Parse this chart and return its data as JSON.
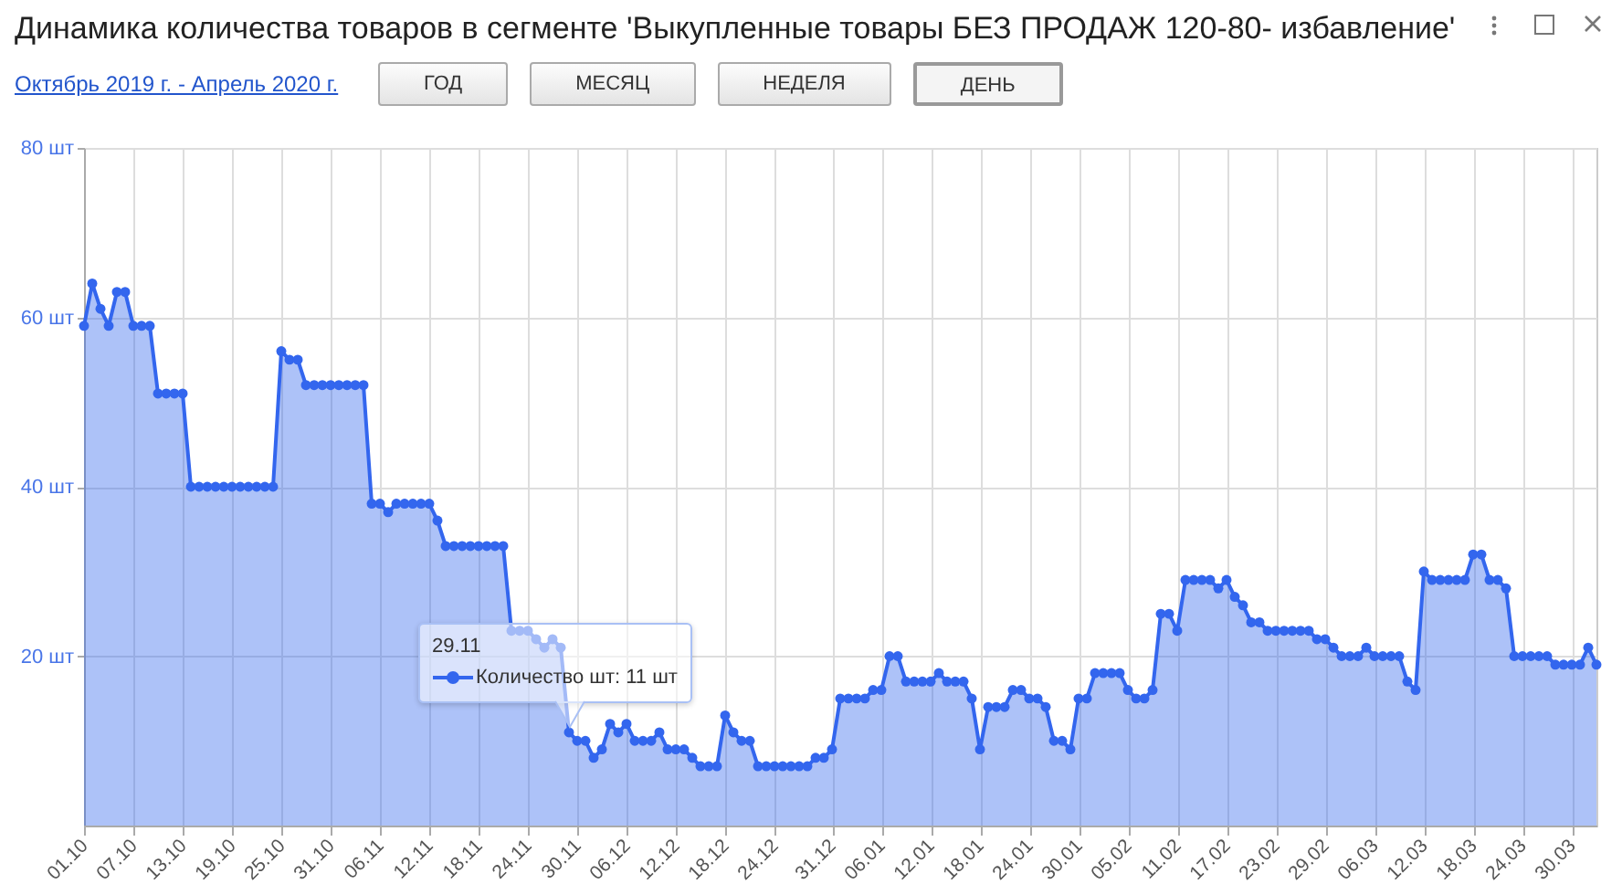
{
  "chart_data": {
    "type": "area",
    "title": "Динамика количества товаров в сегменте 'Выкупленные товары БЕЗ ПРОДАЖ 120-80- избавление'",
    "subtitle": "Октябрь 2019 г. - Апрель 2020 г.",
    "annotations": [
      "ГОД",
      "МЕСЯЦ",
      "НЕДЕЛЯ",
      "ДЕНЬ",
      {
        "text": "Количество шт: 11 шт",
        "x": "2019-11-29",
        "y": 11
      },
      "29.11"
    ],
    "x": [
      "2019-10-01",
      "2019-10-02",
      "2019-10-03",
      "2019-10-04",
      "2019-10-05",
      "2019-10-06",
      "2019-10-07",
      "2019-10-08",
      "2019-10-09",
      "2019-10-10",
      "2019-10-11",
      "2019-10-12",
      "2019-10-13",
      "2019-10-14",
      "2019-10-15",
      "2019-10-16",
      "2019-10-17",
      "2019-10-18",
      "2019-10-19",
      "2019-10-20",
      "2019-10-21",
      "2019-10-22",
      "2019-10-23",
      "2019-10-24",
      "2019-10-25",
      "2019-10-26",
      "2019-10-27",
      "2019-10-28",
      "2019-10-29",
      "2019-10-30",
      "2019-10-31",
      "2019-11-01",
      "2019-11-02",
      "2019-11-03",
      "2019-11-04",
      "2019-11-05",
      "2019-11-06",
      "2019-11-07",
      "2019-11-08",
      "2019-11-09",
      "2019-11-10",
      "2019-11-11",
      "2019-11-12",
      "2019-11-13",
      "2019-11-14",
      "2019-11-15",
      "2019-11-16",
      "2019-11-17",
      "2019-11-18",
      "2019-11-19",
      "2019-11-20",
      "2019-11-21",
      "2019-11-22",
      "2019-11-23",
      "2019-11-24",
      "2019-11-25",
      "2019-11-26",
      "2019-11-27",
      "2019-11-28",
      "2019-11-29",
      "2019-11-30",
      "2019-12-01",
      "2019-12-02",
      "2019-12-03",
      "2019-12-04",
      "2019-12-05",
      "2019-12-06",
      "2019-12-07",
      "2019-12-08",
      "2019-12-09",
      "2019-12-10",
      "2019-12-11",
      "2019-12-12",
      "2019-12-13",
      "2019-12-14",
      "2019-12-15",
      "2019-12-16",
      "2019-12-17",
      "2019-12-18",
      "2019-12-19",
      "2019-12-20",
      "2019-12-21",
      "2019-12-22",
      "2019-12-23",
      "2019-12-24",
      "2019-12-25",
      "2019-12-26",
      "2019-12-27",
      "2019-12-28",
      "2019-12-29",
      "2019-12-30",
      "2019-12-31",
      "2020-01-01",
      "2020-01-02",
      "2020-01-03",
      "2020-01-04",
      "2020-01-05",
      "2020-01-06",
      "2020-01-07",
      "2020-01-08",
      "2020-01-09",
      "2020-01-10",
      "2020-01-11",
      "2020-01-12",
      "2020-01-13",
      "2020-01-14",
      "2020-01-15",
      "2020-01-16",
      "2020-01-17",
      "2020-01-18",
      "2020-01-19",
      "2020-01-20",
      "2020-01-21",
      "2020-01-22",
      "2020-01-23",
      "2020-01-24",
      "2020-01-25",
      "2020-01-26",
      "2020-01-27",
      "2020-01-28",
      "2020-01-29",
      "2020-01-30",
      "2020-01-31",
      "2020-02-01",
      "2020-02-02",
      "2020-02-03",
      "2020-02-04",
      "2020-02-05",
      "2020-02-06",
      "2020-02-07",
      "2020-02-08",
      "2020-02-09",
      "2020-02-10",
      "2020-02-11",
      "2020-02-12",
      "2020-02-13",
      "2020-02-14",
      "2020-02-15",
      "2020-02-16",
      "2020-02-17",
      "2020-02-18",
      "2020-02-19",
      "2020-02-20",
      "2020-02-21",
      "2020-02-22",
      "2020-02-23",
      "2020-02-24",
      "2020-02-25",
      "2020-02-26",
      "2020-02-27",
      "2020-02-28",
      "2020-02-29",
      "2020-03-01",
      "2020-03-02",
      "2020-03-03",
      "2020-03-04",
      "2020-03-05",
      "2020-03-06",
      "2020-03-07",
      "2020-03-08",
      "2020-03-09",
      "2020-03-10",
      "2020-03-11",
      "2020-03-12",
      "2020-03-13",
      "2020-03-14",
      "2020-03-15",
      "2020-03-16",
      "2020-03-17",
      "2020-03-18",
      "2020-03-19",
      "2020-03-20",
      "2020-03-21",
      "2020-03-22",
      "2020-03-23",
      "2020-03-24",
      "2020-03-25",
      "2020-03-26",
      "2020-03-27",
      "2020-03-28",
      "2020-03-29",
      "2020-03-30",
      "2020-03-31",
      "2020-04-01",
      "2020-04-02"
    ],
    "series": [
      {
        "color": "#3366ee",
        "values": [
          59,
          64,
          61,
          59,
          63,
          63,
          59,
          59,
          59,
          51,
          51,
          51,
          51,
          40,
          40,
          40,
          40,
          40,
          40,
          40,
          40,
          40,
          40,
          40,
          56,
          55,
          55,
          52,
          52,
          52,
          52,
          52,
          52,
          52,
          52,
          38,
          38,
          37,
          38,
          38,
          38,
          38,
          38,
          36,
          33,
          33,
          33,
          33,
          33,
          33,
          33,
          33,
          23,
          23,
          23,
          22,
          21,
          22,
          21,
          11,
          10,
          10,
          8,
          9,
          12,
          11,
          12,
          10,
          10,
          10,
          11,
          9,
          9,
          9,
          8,
          7,
          7,
          7,
          13,
          11,
          10,
          10,
          7,
          7,
          7,
          7,
          7,
          7,
          7,
          8,
          8,
          9,
          15,
          15,
          15,
          15,
          16,
          16,
          20,
          20,
          17,
          17,
          17,
          17,
          18,
          17,
          17,
          17,
          15,
          9,
          14,
          14,
          14,
          16,
          16,
          15,
          15,
          14,
          10,
          10,
          9,
          15,
          15,
          18,
          18,
          18,
          18,
          16,
          15,
          15,
          16,
          25,
          25,
          23,
          29,
          29,
          29,
          29,
          28,
          29,
          27,
          26,
          24,
          24,
          23,
          23,
          23,
          23,
          23,
          23,
          22,
          22,
          21,
          20,
          20,
          20,
          21,
          20,
          20,
          20,
          20,
          17,
          16,
          30,
          29,
          29,
          29,
          29,
          29,
          32,
          32,
          29,
          29,
          28,
          20,
          20,
          20,
          20,
          20,
          19,
          19,
          19,
          19,
          21,
          19
        ]
      }
    ],
    "xlim": [
      "2019-10-01",
      "2020-04-02"
    ],
    "xticks": [
      {
        "value": "2019-10-01",
        "label": "01.10"
      },
      {
        "value": "2019-10-07",
        "label": "07.10"
      },
      {
        "value": "2019-10-13",
        "label": "13.10"
      },
      {
        "value": "2019-10-19",
        "label": "19.10"
      },
      {
        "value": "2019-10-25",
        "label": "25.10"
      },
      {
        "value": "2019-10-31",
        "label": "31.10"
      },
      {
        "value": "2019-11-06",
        "label": "06.11"
      },
      {
        "value": "2019-11-12",
        "label": "12.11"
      },
      {
        "value": "2019-11-18",
        "label": "18.11"
      },
      {
        "value": "2019-11-24",
        "label": "24.11"
      },
      {
        "value": "2019-11-30",
        "label": "30.11"
      },
      {
        "value": "2019-12-06",
        "label": "06.12"
      },
      {
        "value": "2019-12-12",
        "label": "12.12"
      },
      {
        "value": "2019-12-18",
        "label": "18.12"
      },
      {
        "value": "2019-12-24",
        "label": "24.12"
      },
      {
        "value": "2019-12-31",
        "label": "31.12"
      },
      {
        "value": "2020-01-06",
        "label": "06.01"
      },
      {
        "value": "2020-01-12",
        "label": "12.01"
      },
      {
        "value": "2020-01-18",
        "label": "18.01"
      },
      {
        "value": "2020-01-24",
        "label": "24.01"
      },
      {
        "value": "2020-01-30",
        "label": "30.01"
      },
      {
        "value": "2020-02-05",
        "label": "05.02"
      },
      {
        "value": "2020-02-11",
        "label": "11.02"
      },
      {
        "value": "2020-02-17",
        "label": "17.02"
      },
      {
        "value": "2020-02-23",
        "label": "23.02"
      },
      {
        "value": "2020-02-29",
        "label": "29.02"
      },
      {
        "value": "2020-03-06",
        "label": "06.03"
      },
      {
        "value": "2020-03-12",
        "label": "12.03"
      },
      {
        "value": "2020-03-18",
        "label": "18.03"
      },
      {
        "value": "2020-03-24",
        "label": "24.03"
      },
      {
        "value": "2020-03-30",
        "label": "30.03"
      }
    ],
    "ylim": [
      0,
      80
    ],
    "yticks": [
      {
        "value": 20,
        "label": "20 шт"
      },
      {
        "value": 40,
        "label": "40 шт"
      },
      {
        "value": 60,
        "label": "60 шт"
      },
      {
        "value": 80,
        "label": "80 шт"
      }
    ],
    "grid": true,
    "marker": "circle"
  }
}
